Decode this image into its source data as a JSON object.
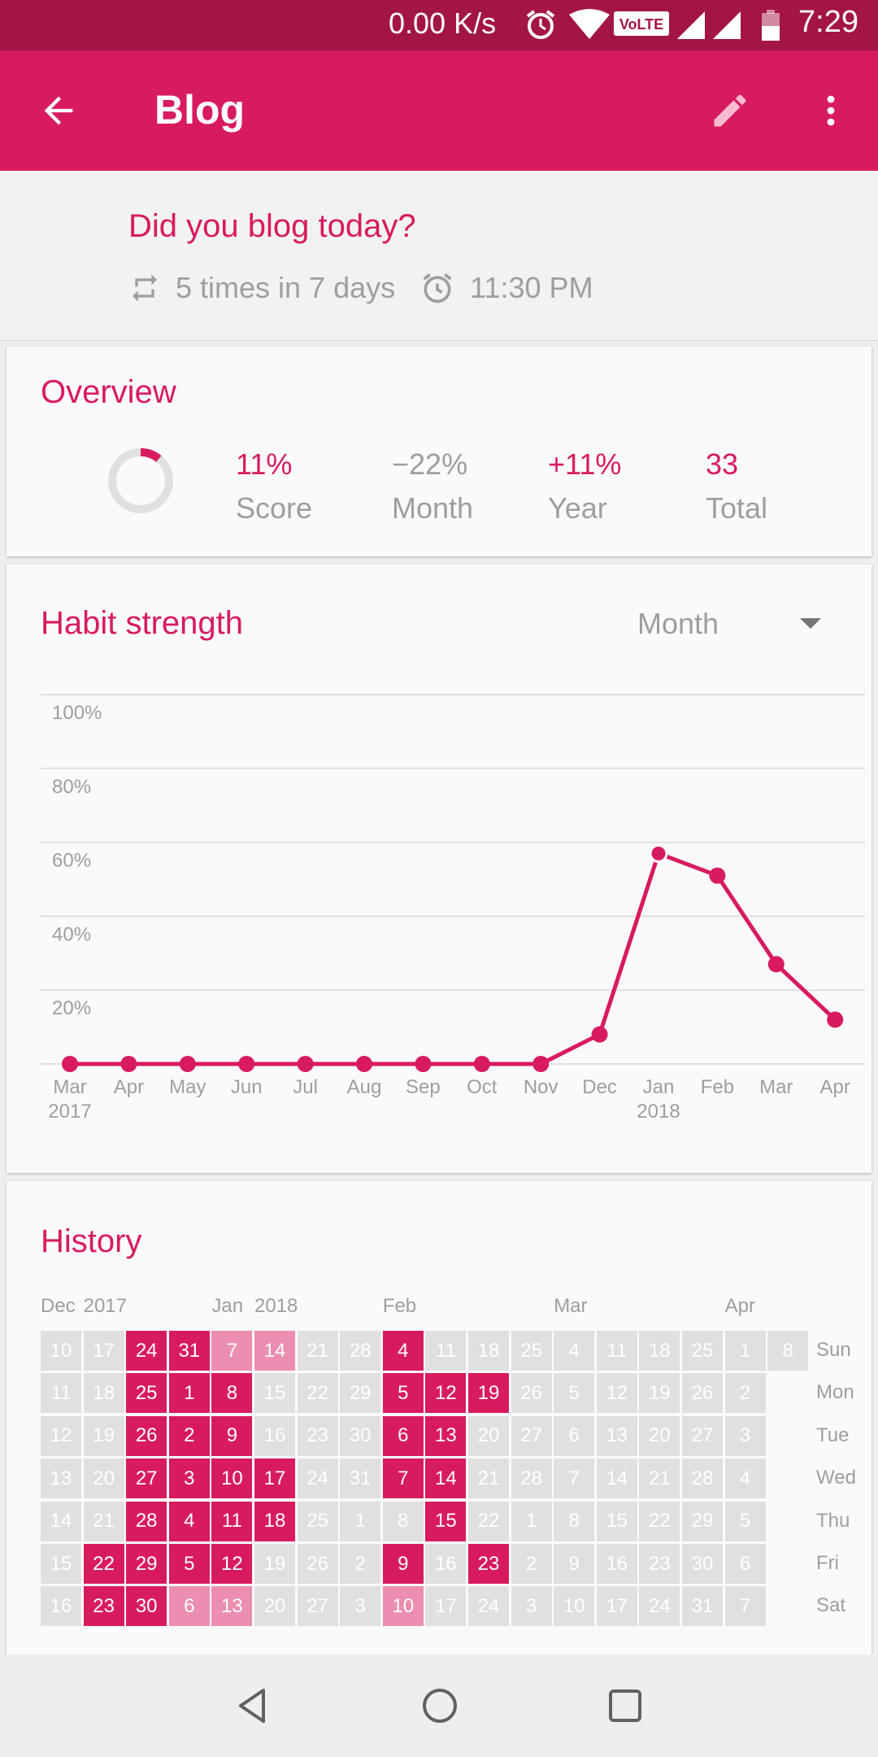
{
  "status_bar": {
    "speed": "0.00 K/s",
    "network": "VoLTE",
    "time": "7:29"
  },
  "app_bar": {
    "title": "Blog"
  },
  "header": {
    "question": "Did you blog today?",
    "frequency": "5 times in 7 days",
    "reminder": "11:30 PM"
  },
  "overview": {
    "title": "Overview",
    "score_ring_percent": 11,
    "stats": [
      {
        "value": "11%",
        "label": "Score",
        "color": "#D81B60"
      },
      {
        "value": "−22%",
        "label": "Month",
        "color": "#9E9E9E"
      },
      {
        "value": "+11%",
        "label": "Year",
        "color": "#D81B60"
      },
      {
        "value": "33",
        "label": "Total",
        "color": "#D81B60"
      }
    ]
  },
  "habit_strength": {
    "title": "Habit strength",
    "period_selected": "Month"
  },
  "chart_data": {
    "type": "line",
    "y_tick_labels": [
      "100%",
      "80%",
      "60%",
      "40%",
      "20%"
    ],
    "ylim": [
      0,
      100
    ],
    "categories": [
      "Mar",
      "Apr",
      "May",
      "Jun",
      "Jul",
      "Aug",
      "Sep",
      "Oct",
      "Nov",
      "Dec",
      "Jan",
      "Feb",
      "Mar",
      "Apr"
    ],
    "year_labels": {
      "0": "2017",
      "10": "2018"
    },
    "values": [
      0,
      0,
      0,
      0,
      0,
      0,
      0,
      0,
      0,
      8,
      57,
      51,
      27,
      12
    ],
    "color": "#D81B60",
    "grid": true
  },
  "history": {
    "title": "History",
    "month_labels": [
      {
        "text": "Dec",
        "col": 0
      },
      {
        "text": "2017",
        "col": 1
      },
      {
        "text": "Jan",
        "col": 4
      },
      {
        "text": "2018",
        "col": 5
      },
      {
        "text": "Feb",
        "col": 8
      },
      {
        "text": "Mar",
        "col": 12
      },
      {
        "text": "Apr",
        "col": 16
      }
    ],
    "weekdays": [
      "Sun",
      "Mon",
      "Tue",
      "Wed",
      "Thu",
      "Fri",
      "Sat"
    ],
    "columns": [
      {
        "days": [
          "10",
          "11",
          "12",
          "13",
          "14",
          "15",
          "16"
        ],
        "state": [
          0,
          0,
          0,
          0,
          0,
          0,
          0
        ]
      },
      {
        "days": [
          "17",
          "18",
          "19",
          "20",
          "21",
          "22",
          "23"
        ],
        "state": [
          0,
          0,
          0,
          0,
          0,
          1,
          1
        ]
      },
      {
        "days": [
          "24",
          "25",
          "26",
          "27",
          "28",
          "29",
          "30"
        ],
        "state": [
          1,
          1,
          1,
          1,
          1,
          1,
          1
        ]
      },
      {
        "days": [
          "31",
          "1",
          "2",
          "3",
          "4",
          "5",
          "6"
        ],
        "state": [
          1,
          1,
          1,
          1,
          1,
          1,
          2
        ]
      },
      {
        "days": [
          "7",
          "8",
          "9",
          "10",
          "11",
          "12",
          "13"
        ],
        "state": [
          2,
          1,
          1,
          1,
          1,
          1,
          2
        ]
      },
      {
        "days": [
          "14",
          "15",
          "16",
          "17",
          "18",
          "19",
          "20"
        ],
        "state": [
          2,
          0,
          0,
          1,
          1,
          0,
          0
        ]
      },
      {
        "days": [
          "21",
          "22",
          "23",
          "24",
          "25",
          "26",
          "27"
        ],
        "state": [
          0,
          0,
          0,
          0,
          0,
          0,
          0
        ]
      },
      {
        "days": [
          "28",
          "29",
          "30",
          "31",
          "1",
          "2",
          "3"
        ],
        "state": [
          0,
          0,
          0,
          0,
          0,
          0,
          0
        ]
      },
      {
        "days": [
          "4",
          "5",
          "6",
          "7",
          "8",
          "9",
          "10"
        ],
        "state": [
          1,
          1,
          1,
          1,
          0,
          1,
          2
        ]
      },
      {
        "days": [
          "11",
          "12",
          "13",
          "14",
          "15",
          "16",
          "17"
        ],
        "state": [
          0,
          1,
          1,
          1,
          1,
          0,
          0
        ]
      },
      {
        "days": [
          "18",
          "19",
          "20",
          "21",
          "22",
          "23",
          "24"
        ],
        "state": [
          0,
          1,
          0,
          0,
          0,
          1,
          0
        ]
      },
      {
        "days": [
          "25",
          "26",
          "27",
          "28",
          "1",
          "2",
          "3"
        ],
        "state": [
          0,
          0,
          0,
          0,
          0,
          0,
          0
        ]
      },
      {
        "days": [
          "4",
          "5",
          "6",
          "7",
          "8",
          "9",
          "10"
        ],
        "state": [
          0,
          0,
          0,
          0,
          0,
          0,
          0
        ]
      },
      {
        "days": [
          "11",
          "12",
          "13",
          "14",
          "15",
          "16",
          "17"
        ],
        "state": [
          0,
          0,
          0,
          0,
          0,
          0,
          0
        ]
      },
      {
        "days": [
          "18",
          "19",
          "20",
          "21",
          "22",
          "23",
          "24"
        ],
        "state": [
          0,
          0,
          0,
          0,
          0,
          0,
          0
        ]
      },
      {
        "days": [
          "25",
          "26",
          "27",
          "28",
          "29",
          "30",
          "31"
        ],
        "state": [
          0,
          0,
          0,
          0,
          0,
          0,
          0
        ]
      },
      {
        "days": [
          "1",
          "2",
          "3",
          "4",
          "5",
          "6",
          "7"
        ],
        "state": [
          0,
          0,
          0,
          0,
          0,
          0,
          0
        ]
      },
      {
        "days": [
          "8"
        ],
        "state": [
          0
        ]
      }
    ]
  },
  "colors": {
    "accent": "#D81B60",
    "accent_dark": "#A31545",
    "accent_light": "#EC8EB2",
    "empty": "#E0E0E0"
  },
  "nav_bar": {
    "icons": [
      "back-icon",
      "home-icon",
      "recents-icon"
    ]
  }
}
